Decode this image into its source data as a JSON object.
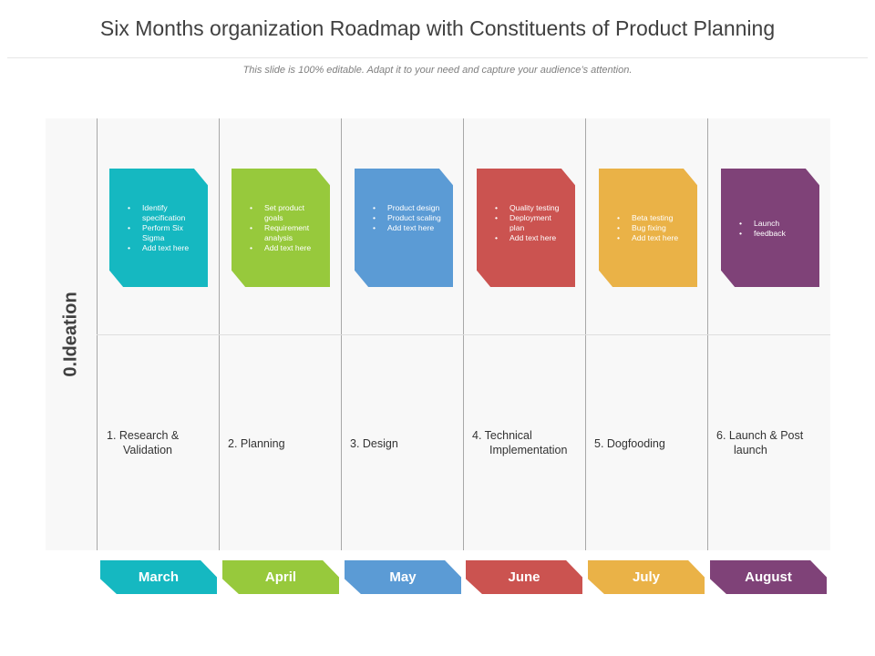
{
  "title": "Six Months organization Roadmap with Constituents of Product Planning",
  "subtitle": "This slide is 100% editable. Adapt it to your need and capture your audience’s attention.",
  "row_label": "0.Ideation",
  "colors": {
    "teal": "#15b8c1",
    "green": "#97c93c",
    "blue": "#5b9bd5",
    "red": "#cb5350",
    "orange": "#eab247",
    "purple": "#7f4278"
  },
  "columns": [
    {
      "card_items": [
        "Identify specification",
        "Perform Six Sigma",
        "Add text here"
      ],
      "phase_line1": "1. Research &",
      "phase_line2": "Validation",
      "month": "March"
    },
    {
      "card_items": [
        "Set product goals",
        "Requirement analysis",
        "Add text here"
      ],
      "phase_line1": "2. Planning",
      "phase_line2": "",
      "month": "April"
    },
    {
      "card_items": [
        "Product design",
        "Product scaling",
        "Add text here"
      ],
      "phase_line1": "3. Design",
      "phase_line2": "",
      "month": "May"
    },
    {
      "card_items": [
        "Quality testing",
        "Deployment plan",
        "Add text here"
      ],
      "phase_line1": "4. Technical",
      "phase_line2": "Implementation",
      "month": "June"
    },
    {
      "card_items": [
        "Beta testing",
        "Bug fixing",
        "Add text here"
      ],
      "phase_line1": "5. Dogfooding",
      "phase_line2": "",
      "month": "July"
    },
    {
      "card_items": [
        "Launch",
        "feedback"
      ],
      "phase_line1": "6. Launch & Post",
      "phase_line2": "launch",
      "month": "August"
    }
  ]
}
